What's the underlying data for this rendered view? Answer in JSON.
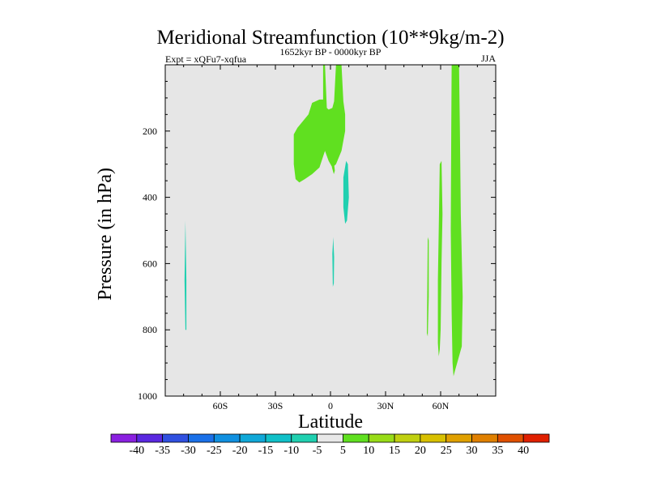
{
  "chart_data": {
    "type": "contour",
    "title": "Meridional Streamfunction (10**9kg/m-2)",
    "subtitle_left": "Expt = xQFu7-xqfua",
    "subtitle_center": "1652kyr BP - 0000kyr BP",
    "subtitle_right": "JJA",
    "xlabel": "Latitude",
    "ylabel": "Pressure (in hPa)",
    "xlim": [
      -90,
      90
    ],
    "ylim": [
      1000,
      0
    ],
    "x_ticks": [
      {
        "value": -60,
        "label": "60S"
      },
      {
        "value": -30,
        "label": "30S"
      },
      {
        "value": 0,
        "label": "0"
      },
      {
        "value": 30,
        "label": "30N"
      },
      {
        "value": 60,
        "label": "60N"
      }
    ],
    "y_ticks": [
      {
        "value": 200,
        "label": "200"
      },
      {
        "value": 400,
        "label": "400"
      },
      {
        "value": 600,
        "label": "600"
      },
      {
        "value": 800,
        "label": "800"
      },
      {
        "value": 1000,
        "label": "1000"
      }
    ],
    "background_color": "#e6e6e6",
    "regions": [
      {
        "name": "positive-tropical-upper",
        "level": 5,
        "color": "#60e020",
        "lat_p": [
          [
            -3,
            0
          ],
          [
            -2,
            130
          ],
          [
            -1,
            135
          ],
          [
            1,
            130
          ],
          [
            2,
            110
          ],
          [
            3,
            0
          ],
          [
            6,
            0
          ],
          [
            7,
            110
          ],
          [
            8,
            150
          ],
          [
            8,
            200
          ],
          [
            6,
            260
          ],
          [
            3,
            300
          ],
          [
            1,
            310
          ],
          [
            -1,
            290
          ],
          [
            -3,
            260
          ],
          [
            -6,
            310
          ],
          [
            -10,
            330
          ],
          [
            -14,
            345
          ],
          [
            -17,
            355
          ],
          [
            -19,
            345
          ],
          [
            -20,
            300
          ],
          [
            -20,
            260
          ],
          [
            -20,
            210
          ],
          [
            -18,
            190
          ],
          [
            -15,
            170
          ],
          [
            -12,
            150
          ],
          [
            -10,
            115
          ],
          [
            -6,
            105
          ],
          [
            -4,
            105
          ],
          [
            -4,
            0
          ]
        ]
      },
      {
        "name": "positive-eq-sliver",
        "level": 5,
        "color": "#60e020",
        "lat_p": [
          [
            0.8,
            310
          ],
          [
            1.6,
            280
          ],
          [
            2.4,
            320
          ],
          [
            1.8,
            330
          ]
        ]
      },
      {
        "name": "positive-60n-tall",
        "level": 5,
        "color": "#60e020",
        "lat_p": [
          [
            66,
            0
          ],
          [
            70,
            0
          ],
          [
            70.5,
            200
          ],
          [
            71,
            450
          ],
          [
            72,
            700
          ],
          [
            71.5,
            850
          ],
          [
            70,
            880
          ],
          [
            68,
            920
          ],
          [
            67,
            940
          ],
          [
            66.5,
            900
          ],
          [
            66,
            750
          ],
          [
            65.5,
            500
          ],
          [
            65.8,
            200
          ]
        ]
      },
      {
        "name": "positive-55n",
        "level": 5,
        "color": "#60e020",
        "lat_p": [
          [
            59,
            490
          ],
          [
            59.5,
            300
          ],
          [
            60.5,
            290
          ],
          [
            61,
            450
          ],
          [
            60.5,
            600
          ],
          [
            60,
            800
          ],
          [
            59.5,
            860
          ],
          [
            59,
            880
          ],
          [
            58.5,
            840
          ],
          [
            58.5,
            650
          ]
        ]
      },
      {
        "name": "positive-50n-sliver",
        "level": 5,
        "color": "#60e020",
        "lat_p": [
          [
            52.5,
            810
          ],
          [
            53,
            520
          ],
          [
            53.5,
            530
          ],
          [
            53.5,
            700
          ],
          [
            53,
            820
          ]
        ]
      },
      {
        "name": "negative-70s",
        "level": -5,
        "color": "#20d0b0",
        "lat_p": [
          [
            -79,
            800
          ],
          [
            -79.5,
            650
          ],
          [
            -79,
            470
          ],
          [
            -78.5,
            650
          ],
          [
            -78.5,
            800
          ]
        ]
      },
      {
        "name": "negative-10n",
        "level": -5,
        "color": "#20d0b0",
        "lat_p": [
          [
            7,
            430
          ],
          [
            7,
            340
          ],
          [
            8.5,
            290
          ],
          [
            9.5,
            300
          ],
          [
            10,
            400
          ],
          [
            9,
            470
          ],
          [
            8,
            480
          ]
        ]
      },
      {
        "name": "negative-eq-small",
        "level": -5,
        "color": "#20d0b0",
        "lat_p": [
          [
            1.3,
            670
          ],
          [
            1,
            570
          ],
          [
            1.5,
            520
          ],
          [
            2,
            580
          ],
          [
            1.8,
            660
          ]
        ]
      }
    ],
    "colorbar": {
      "labels": [
        "-40",
        "-35",
        "-30",
        "-25",
        "-20",
        "-15",
        "-10",
        "-5",
        "5",
        "10",
        "15",
        "20",
        "25",
        "30",
        "35",
        "40"
      ],
      "colors": [
        "#8a20e0",
        "#5a28e0",
        "#3050e0",
        "#1a70e8",
        "#1090e0",
        "#10a8d8",
        "#10c0c8",
        "#20d0b0",
        "#e8e8e8",
        "#60e020",
        "#98dc18",
        "#c0d010",
        "#d8c000",
        "#e0a000",
        "#e08000",
        "#e05000",
        "#e02000"
      ]
    }
  }
}
